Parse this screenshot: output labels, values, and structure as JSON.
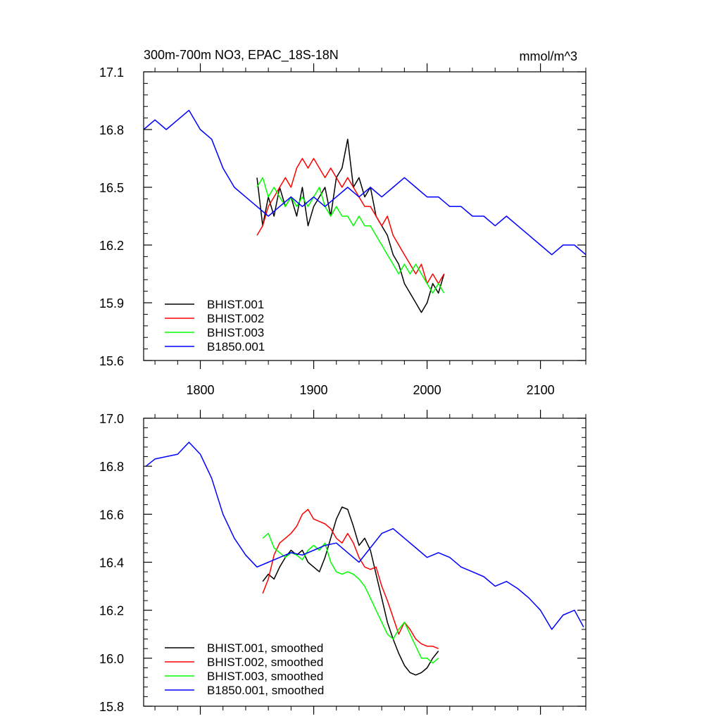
{
  "chart_data": [
    {
      "type": "line",
      "title": "300m-700m NO3, EPAC_18S-18N",
      "units": "mmol/m^3",
      "xlim": [
        1750,
        2140
      ],
      "ylim": [
        15.6,
        17.1
      ],
      "x_ticks": [
        1800,
        1900,
        2000,
        2100
      ],
      "x_tick_labels": [
        "1800",
        "1900",
        "2000",
        "2100"
      ],
      "y_ticks": [
        15.6,
        15.9,
        16.2,
        16.5,
        16.8,
        17.1
      ],
      "y_tick_labels": [
        "15.6",
        "15.9",
        "16.2",
        "16.5",
        "16.8",
        "17.1"
      ],
      "legend_position": "bottom-left",
      "series": [
        {
          "name": "BHIST.001",
          "label": "BHIST.001",
          "color": "#000000",
          "x": [
            1850,
            1855,
            1860,
            1865,
            1870,
            1875,
            1880,
            1885,
            1890,
            1895,
            1900,
            1905,
            1910,
            1915,
            1920,
            1925,
            1930,
            1935,
            1940,
            1945,
            1950,
            1955,
            1960,
            1965,
            1970,
            1975,
            1980,
            1985,
            1990,
            1995,
            2000,
            2005,
            2010,
            2015
          ],
          "y": [
            16.55,
            16.3,
            16.45,
            16.35,
            16.5,
            16.4,
            16.45,
            16.35,
            16.5,
            16.3,
            16.4,
            16.45,
            16.5,
            16.35,
            16.55,
            16.6,
            16.75,
            16.5,
            16.55,
            16.45,
            16.5,
            16.35,
            16.3,
            16.25,
            16.15,
            16.1,
            16.0,
            15.95,
            15.9,
            15.85,
            15.9,
            16.0,
            15.95,
            16.05
          ]
        },
        {
          "name": "BHIST.002",
          "label": "BHIST.002",
          "color": "#ff0000",
          "x": [
            1850,
            1855,
            1860,
            1865,
            1870,
            1875,
            1880,
            1885,
            1890,
            1895,
            1900,
            1905,
            1910,
            1915,
            1920,
            1925,
            1930,
            1935,
            1940,
            1945,
            1950,
            1955,
            1960,
            1965,
            1970,
            1975,
            1980,
            1985,
            1990,
            1995,
            2000,
            2005,
            2010,
            2015
          ],
          "y": [
            16.25,
            16.3,
            16.4,
            16.45,
            16.5,
            16.55,
            16.5,
            16.6,
            16.65,
            16.6,
            16.65,
            16.6,
            16.55,
            16.6,
            16.55,
            16.5,
            16.55,
            16.5,
            16.45,
            16.4,
            16.4,
            16.35,
            16.3,
            16.35,
            16.25,
            16.2,
            16.15,
            16.1,
            16.05,
            16.1,
            16.0,
            16.05,
            16.0,
            16.05
          ]
        },
        {
          "name": "BHIST.003",
          "label": "BHIST.003",
          "color": "#00ff00",
          "x": [
            1850,
            1855,
            1860,
            1865,
            1870,
            1875,
            1880,
            1885,
            1890,
            1895,
            1900,
            1905,
            1910,
            1915,
            1920,
            1925,
            1930,
            1935,
            1940,
            1945,
            1950,
            1955,
            1960,
            1965,
            1970,
            1975,
            1980,
            1985,
            1990,
            1995,
            2000,
            2005,
            2010,
            2015
          ],
          "y": [
            16.5,
            16.55,
            16.45,
            16.5,
            16.45,
            16.4,
            16.45,
            16.4,
            16.45,
            16.4,
            16.45,
            16.5,
            16.4,
            16.35,
            16.4,
            16.35,
            16.35,
            16.3,
            16.35,
            16.3,
            16.3,
            16.25,
            16.2,
            16.15,
            16.1,
            16.05,
            16.1,
            16.05,
            16.1,
            16.05,
            16.0,
            15.95,
            16.0,
            15.95
          ]
        },
        {
          "name": "B1850.001",
          "label": "B1850.001",
          "color": "#0000ff",
          "x": [
            1750,
            1760,
            1770,
            1780,
            1790,
            1800,
            1810,
            1820,
            1830,
            1840,
            1850,
            1860,
            1870,
            1880,
            1890,
            1900,
            1910,
            1920,
            1930,
            1940,
            1950,
            1960,
            1970,
            1980,
            1990,
            2000,
            2010,
            2020,
            2030,
            2040,
            2050,
            2060,
            2070,
            2080,
            2090,
            2100,
            2110,
            2120,
            2130,
            2140
          ],
          "y": [
            16.8,
            16.85,
            16.8,
            16.85,
            16.9,
            16.8,
            16.75,
            16.6,
            16.5,
            16.45,
            16.4,
            16.35,
            16.4,
            16.45,
            16.4,
            16.45,
            16.4,
            16.45,
            16.5,
            16.45,
            16.5,
            16.45,
            16.5,
            16.55,
            16.5,
            16.45,
            16.45,
            16.4,
            16.4,
            16.35,
            16.35,
            16.3,
            16.35,
            16.3,
            16.25,
            16.2,
            16.15,
            16.2,
            16.2,
            16.15
          ]
        }
      ]
    },
    {
      "type": "line",
      "xlim": [
        1750,
        2140
      ],
      "ylim": [
        15.8,
        17.0
      ],
      "y_ticks": [
        15.8,
        16.0,
        16.2,
        16.4,
        16.6,
        16.8,
        17.0
      ],
      "y_tick_labels": [
        "15.8",
        "16.0",
        "16.2",
        "16.4",
        "16.6",
        "16.8",
        "17.0"
      ],
      "legend_position": "bottom-left",
      "series": [
        {
          "name": "BHIST.001, smoothed",
          "label": "BHIST.001, smoothed",
          "color": "#000000",
          "x": [
            1855,
            1860,
            1865,
            1870,
            1875,
            1880,
            1885,
            1890,
            1895,
            1900,
            1905,
            1910,
            1915,
            1920,
            1925,
            1930,
            1935,
            1940,
            1945,
            1950,
            1955,
            1960,
            1965,
            1970,
            1975,
            1980,
            1985,
            1990,
            1995,
            2000,
            2005,
            2010
          ],
          "y": [
            16.32,
            16.35,
            16.33,
            16.38,
            16.42,
            16.45,
            16.43,
            16.45,
            16.4,
            16.38,
            16.36,
            16.42,
            16.5,
            16.58,
            16.63,
            16.62,
            16.55,
            16.47,
            16.5,
            16.45,
            16.35,
            16.25,
            16.15,
            16.08,
            16.02,
            15.97,
            15.94,
            15.93,
            15.94,
            15.96,
            16.0,
            16.03
          ]
        },
        {
          "name": "BHIST.002, smoothed",
          "label": "BHIST.002, smoothed",
          "color": "#ff0000",
          "x": [
            1855,
            1860,
            1865,
            1870,
            1875,
            1880,
            1885,
            1890,
            1895,
            1900,
            1905,
            1910,
            1915,
            1920,
            1925,
            1930,
            1935,
            1940,
            1945,
            1950,
            1955,
            1960,
            1965,
            1970,
            1975,
            1980,
            1985,
            1990,
            1995,
            2000,
            2005,
            2010
          ],
          "y": [
            16.27,
            16.33,
            16.43,
            16.48,
            16.5,
            16.52,
            16.55,
            16.6,
            16.62,
            16.58,
            16.57,
            16.56,
            16.54,
            16.5,
            16.48,
            16.52,
            16.48,
            16.42,
            16.38,
            16.37,
            16.38,
            16.3,
            16.24,
            16.17,
            16.1,
            16.15,
            16.12,
            16.08,
            16.06,
            16.05,
            16.05,
            16.04
          ]
        },
        {
          "name": "BHIST.003, smoothed",
          "label": "BHIST.003, smoothed",
          "color": "#00ff00",
          "x": [
            1855,
            1860,
            1865,
            1870,
            1875,
            1880,
            1885,
            1890,
            1895,
            1900,
            1905,
            1910,
            1915,
            1920,
            1925,
            1930,
            1935,
            1940,
            1945,
            1950,
            1955,
            1960,
            1965,
            1970,
            1975,
            1980,
            1985,
            1990,
            1995,
            2000,
            2005,
            2010
          ],
          "y": [
            16.5,
            16.52,
            16.46,
            16.44,
            16.42,
            16.44,
            16.43,
            16.41,
            16.45,
            16.47,
            16.45,
            16.48,
            16.4,
            16.36,
            16.35,
            16.36,
            16.35,
            16.33,
            16.3,
            16.25,
            16.2,
            16.15,
            16.1,
            16.08,
            16.12,
            16.15,
            16.1,
            16.05,
            16.0,
            16.0,
            15.98,
            16.0
          ]
        },
        {
          "name": "B1850.001, smoothed",
          "label": "B1850.001, smoothed",
          "color": "#0000ff",
          "x": [
            1752,
            1760,
            1770,
            1780,
            1790,
            1800,
            1810,
            1820,
            1830,
            1840,
            1850,
            1860,
            1870,
            1880,
            1890,
            1900,
            1910,
            1920,
            1930,
            1940,
            1950,
            1960,
            1970,
            1980,
            1990,
            2000,
            2010,
            2020,
            2030,
            2040,
            2050,
            2060,
            2070,
            2080,
            2090,
            2100,
            2110,
            2120,
            2130,
            2138
          ],
          "y": [
            16.8,
            16.83,
            16.84,
            16.85,
            16.9,
            16.85,
            16.75,
            16.6,
            16.5,
            16.43,
            16.38,
            16.4,
            16.42,
            16.44,
            16.43,
            16.45,
            16.47,
            16.48,
            16.44,
            16.4,
            16.46,
            16.52,
            16.54,
            16.5,
            16.46,
            16.42,
            16.44,
            16.42,
            16.38,
            16.36,
            16.34,
            16.3,
            16.32,
            16.29,
            16.25,
            16.2,
            16.12,
            16.18,
            16.2,
            16.13
          ]
        }
      ]
    }
  ]
}
